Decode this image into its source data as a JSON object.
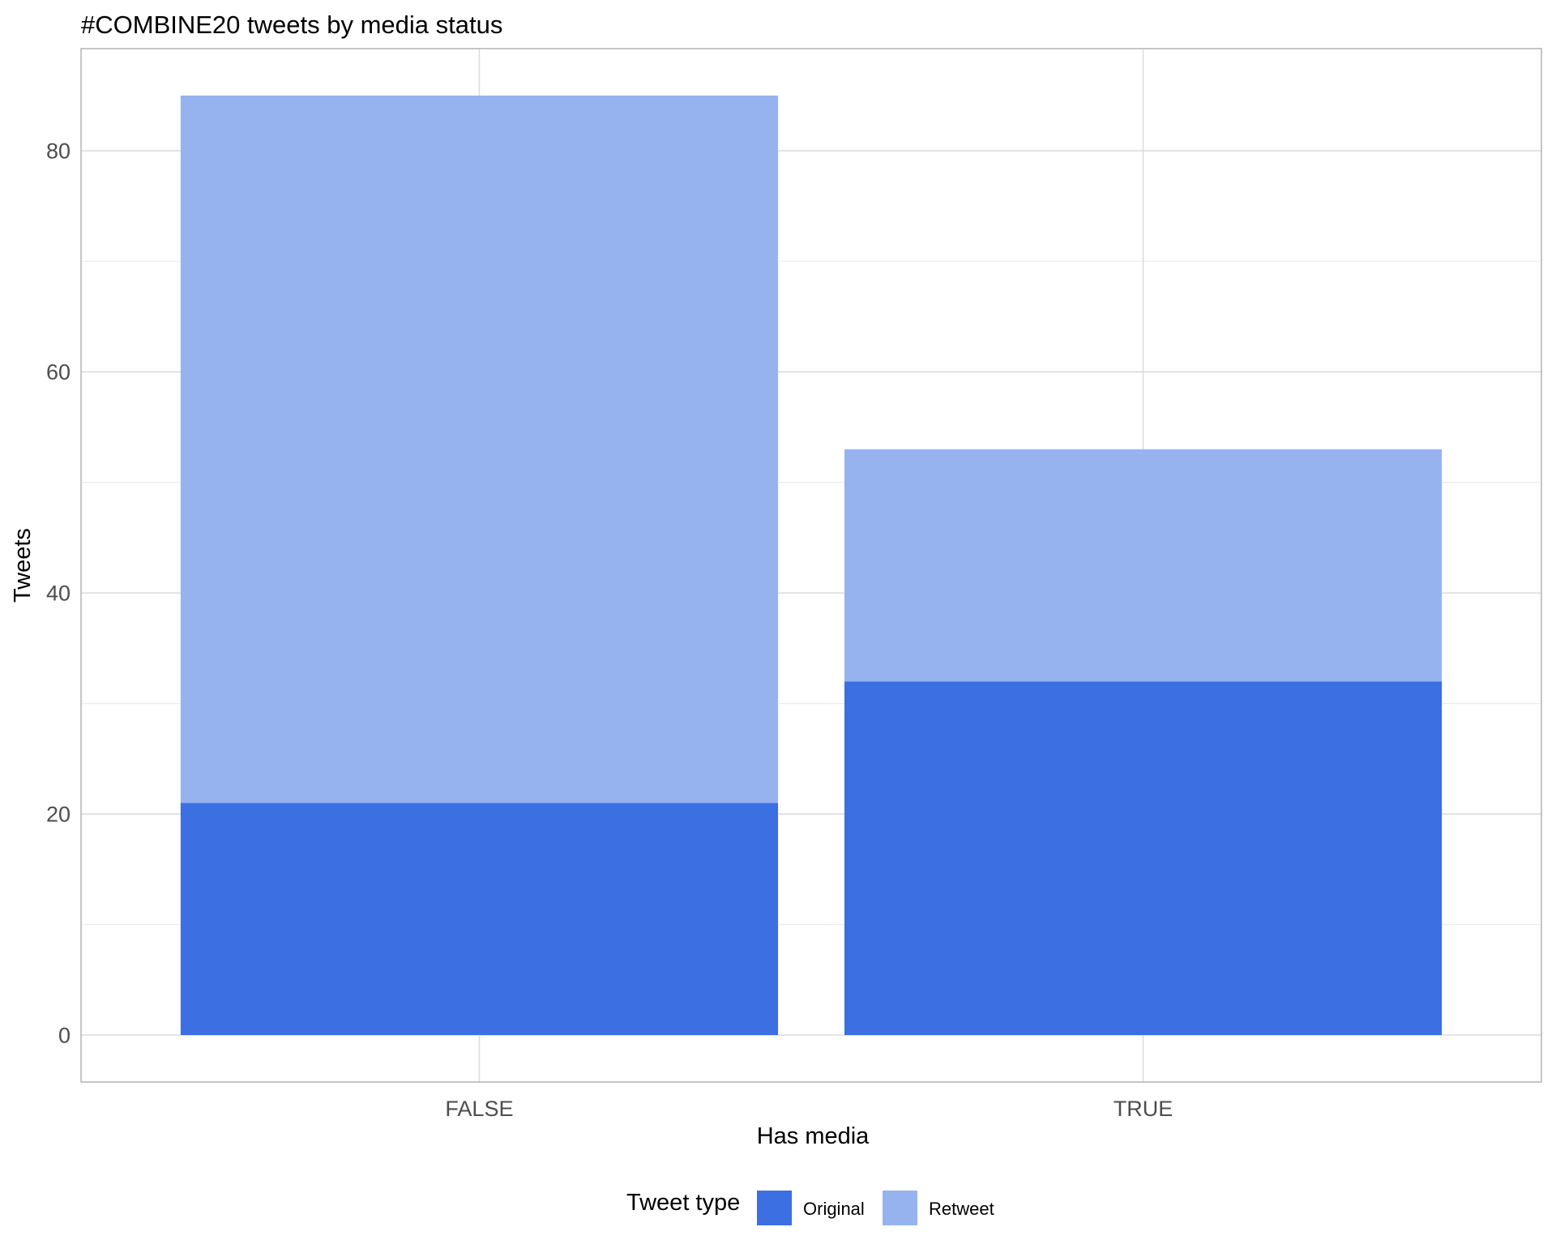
{
  "chart_data": {
    "type": "bar",
    "stacked": true,
    "title": "#COMBINE20 tweets by media status",
    "xlabel": "Has media",
    "ylabel": "Tweets",
    "categories": [
      "FALSE",
      "TRUE"
    ],
    "series": [
      {
        "name": "Original",
        "values": [
          21,
          32
        ],
        "color": "#3C6FE1"
      },
      {
        "name": "Retweet",
        "values": [
          64,
          21
        ],
        "color": "#96B3F0"
      }
    ],
    "ylim": [
      -4.25,
      89.25
    ],
    "yticks": [
      0,
      20,
      40,
      60,
      80
    ],
    "yminor": [
      10,
      30,
      50,
      70
    ],
    "grid": true,
    "legend": {
      "title": "Tweet type",
      "position": "bottom"
    }
  }
}
